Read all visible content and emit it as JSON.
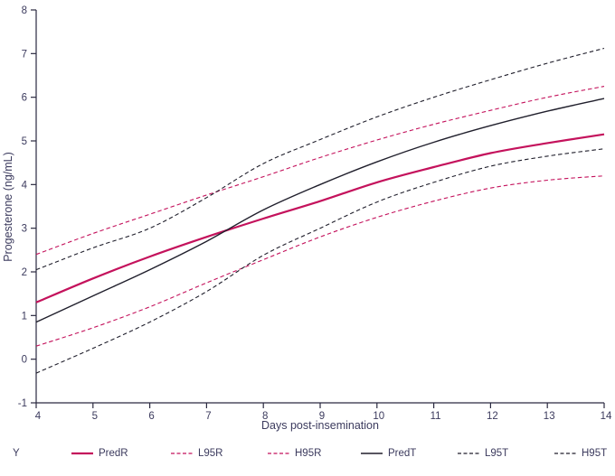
{
  "colors": {
    "red": "#C4125C",
    "black": "#201F2C",
    "axis": "#2A2940",
    "text": "#3C3B5E"
  },
  "chart_data": {
    "type": "line",
    "title": "",
    "xlabel": "Days post-insemination",
    "ylabel": "Progesterone (ng/mL)",
    "legend_title": "Y",
    "legend_position": "bottom",
    "grid": false,
    "xlim": [
      4,
      14
    ],
    "ylim": [
      -1,
      8
    ],
    "xticks": [
      4,
      5,
      6,
      7,
      8,
      9,
      10,
      11,
      12,
      13,
      14
    ],
    "yticks": [
      -1,
      0,
      1,
      2,
      3,
      4,
      5,
      6,
      7,
      8
    ],
    "x": [
      4,
      5,
      6,
      7,
      8,
      9,
      10,
      11,
      12,
      13,
      14
    ],
    "series": [
      {
        "name": "PredR",
        "color": "red",
        "style": "solid",
        "width": 2.2,
        "values": [
          1.3,
          1.85,
          2.35,
          2.8,
          3.22,
          3.62,
          4.05,
          4.4,
          4.72,
          4.95,
          5.15
        ]
      },
      {
        "name": "L95R",
        "color": "red",
        "style": "dashed",
        "width": 1.1,
        "values": [
          0.3,
          0.72,
          1.2,
          1.75,
          2.28,
          2.8,
          3.25,
          3.62,
          3.92,
          4.1,
          4.2
        ]
      },
      {
        "name": "H95R",
        "color": "red",
        "style": "dashed",
        "width": 1.1,
        "values": [
          2.4,
          2.88,
          3.32,
          3.76,
          4.18,
          4.62,
          5.02,
          5.38,
          5.7,
          6.0,
          6.25
        ]
      },
      {
        "name": "PredT",
        "color": "black",
        "style": "solid",
        "width": 1.4,
        "values": [
          0.85,
          1.45,
          2.05,
          2.7,
          3.42,
          4.0,
          4.52,
          4.97,
          5.35,
          5.68,
          5.97
        ]
      },
      {
        "name": "L95T",
        "color": "black",
        "style": "dashed",
        "width": 1.1,
        "values": [
          -0.32,
          0.25,
          0.85,
          1.55,
          2.38,
          3.0,
          3.6,
          4.05,
          4.42,
          4.65,
          4.82
        ]
      },
      {
        "name": "H95T",
        "color": "black",
        "style": "dashed",
        "width": 1.1,
        "values": [
          2.05,
          2.55,
          3.0,
          3.7,
          4.48,
          5.03,
          5.55,
          6.0,
          6.4,
          6.78,
          7.12
        ]
      }
    ]
  }
}
